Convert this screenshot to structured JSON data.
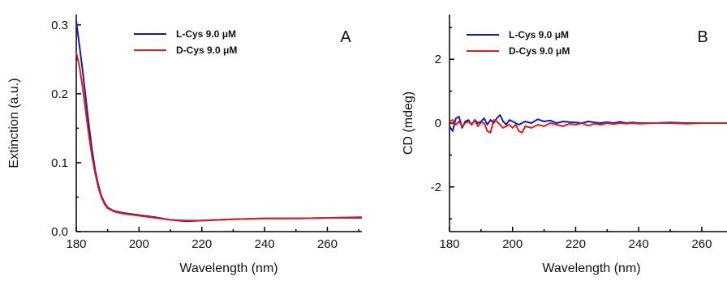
{
  "chart_data": [
    {
      "type": "line",
      "panel_label": "A",
      "xlabel": "Wavelength (nm)",
      "ylabel": "Extinction (a.u.)",
      "xlim": [
        180,
        271
      ],
      "ylim": [
        0.0,
        0.315
      ],
      "x_ticks": [
        180,
        200,
        220,
        240,
        260
      ],
      "x_tick_labels": [
        "180",
        "200",
        "220",
        "240",
        "260"
      ],
      "y_ticks": [
        0.0,
        0.1,
        0.2,
        0.3
      ],
      "y_tick_labels": [
        "0.0",
        "0.1",
        "0.2",
        "0.3"
      ],
      "grid": false,
      "legend_position": "top-center",
      "series": [
        {
          "name": "L-Cys 9.0 μM",
          "color": "#1a1aa6",
          "x": [
            180,
            181,
            182,
            183,
            184,
            185,
            186,
            187,
            188,
            189,
            190,
            192,
            195,
            200,
            205,
            210,
            215,
            220,
            230,
            240,
            250,
            260,
            271
          ],
          "y": [
            0.305,
            0.27,
            0.235,
            0.195,
            0.155,
            0.12,
            0.09,
            0.068,
            0.052,
            0.042,
            0.035,
            0.03,
            0.027,
            0.024,
            0.021,
            0.017,
            0.015,
            0.016,
            0.018,
            0.019,
            0.019,
            0.02,
            0.02
          ]
        },
        {
          "name": "D-Cys 9.0 μM",
          "color": "#dd1c1c",
          "x": [
            180,
            181,
            182,
            183,
            184,
            185,
            186,
            187,
            188,
            189,
            190,
            192,
            195,
            200,
            205,
            210,
            215,
            220,
            230,
            240,
            250,
            260,
            271
          ],
          "y": [
            0.26,
            0.24,
            0.21,
            0.175,
            0.14,
            0.11,
            0.085,
            0.064,
            0.05,
            0.04,
            0.034,
            0.029,
            0.026,
            0.023,
            0.02,
            0.017,
            0.016,
            0.016,
            0.018,
            0.019,
            0.019,
            0.02,
            0.021
          ]
        }
      ]
    },
    {
      "type": "line",
      "panel_label": "B",
      "xlabel": "Wavelength (nm)",
      "ylabel": "CD (mdeg)",
      "xlim": [
        180,
        268
      ],
      "ylim": [
        -3.4,
        3.4
      ],
      "x_ticks": [
        180,
        200,
        220,
        240,
        260
      ],
      "x_tick_labels": [
        "180",
        "200",
        "220",
        "240",
        "260"
      ],
      "y_ticks": [
        -2,
        0,
        2
      ],
      "y_tick_labels": [
        "-2",
        "0",
        "2"
      ],
      "grid": false,
      "legend_position": "top-left",
      "series": [
        {
          "name": "L-Cys 9.0 μM",
          "color": "#1a1aa6",
          "x": [
            180,
            181,
            182,
            183,
            184,
            185,
            186,
            187,
            188,
            189,
            190,
            191,
            192,
            193,
            194,
            195,
            196,
            197,
            198,
            199,
            200,
            202,
            204,
            206,
            208,
            210,
            212,
            214,
            216,
            218,
            220,
            222,
            224,
            226,
            228,
            230,
            232,
            234,
            236,
            238,
            240,
            245,
            250,
            255,
            260,
            268
          ],
          "y": [
            -0.1,
            -0.25,
            0.15,
            0.2,
            -0.15,
            0.05,
            0.1,
            -0.05,
            0.1,
            0.0,
            0.05,
            0.15,
            -0.05,
            0.1,
            0.0,
            0.15,
            0.25,
            0.05,
            -0.05,
            0.1,
            0.05,
            -0.05,
            0.05,
            0.0,
            0.12,
            0.05,
            0.08,
            0.0,
            0.05,
            0.03,
            0.02,
            0.0,
            0.05,
            0.02,
            0.0,
            0.03,
            0.0,
            0.04,
            0.0,
            0.02,
            0.0,
            0.0,
            0.02,
            0.0,
            0.0,
            0.0
          ]
        },
        {
          "name": "D-Cys 9.0 μM",
          "color": "#dd1c1c",
          "x": [
            180,
            181,
            182,
            183,
            184,
            185,
            186,
            187,
            188,
            189,
            190,
            191,
            192,
            193,
            194,
            195,
            196,
            197,
            198,
            199,
            200,
            201,
            202,
            203,
            204,
            206,
            208,
            210,
            212,
            214,
            216,
            218,
            220,
            222,
            224,
            226,
            228,
            230,
            232,
            234,
            236,
            238,
            240,
            245,
            250,
            255,
            260,
            268
          ],
          "y": [
            0.05,
            0.1,
            -0.05,
            0.05,
            -0.1,
            0.0,
            0.05,
            -0.05,
            0.08,
            -0.1,
            0.02,
            0.0,
            -0.25,
            -0.3,
            0.1,
            0.05,
            -0.05,
            -0.15,
            -0.1,
            -0.05,
            -0.15,
            -0.05,
            -0.25,
            -0.3,
            -0.1,
            -0.15,
            -0.05,
            -0.1,
            0.0,
            -0.05,
            -0.1,
            -0.02,
            -0.05,
            0.0,
            -0.08,
            -0.02,
            -0.05,
            0.0,
            -0.03,
            0.0,
            -0.02,
            0.0,
            -0.02,
            0.0,
            0.0,
            -0.02,
            0.0,
            0.0
          ]
        }
      ]
    }
  ]
}
